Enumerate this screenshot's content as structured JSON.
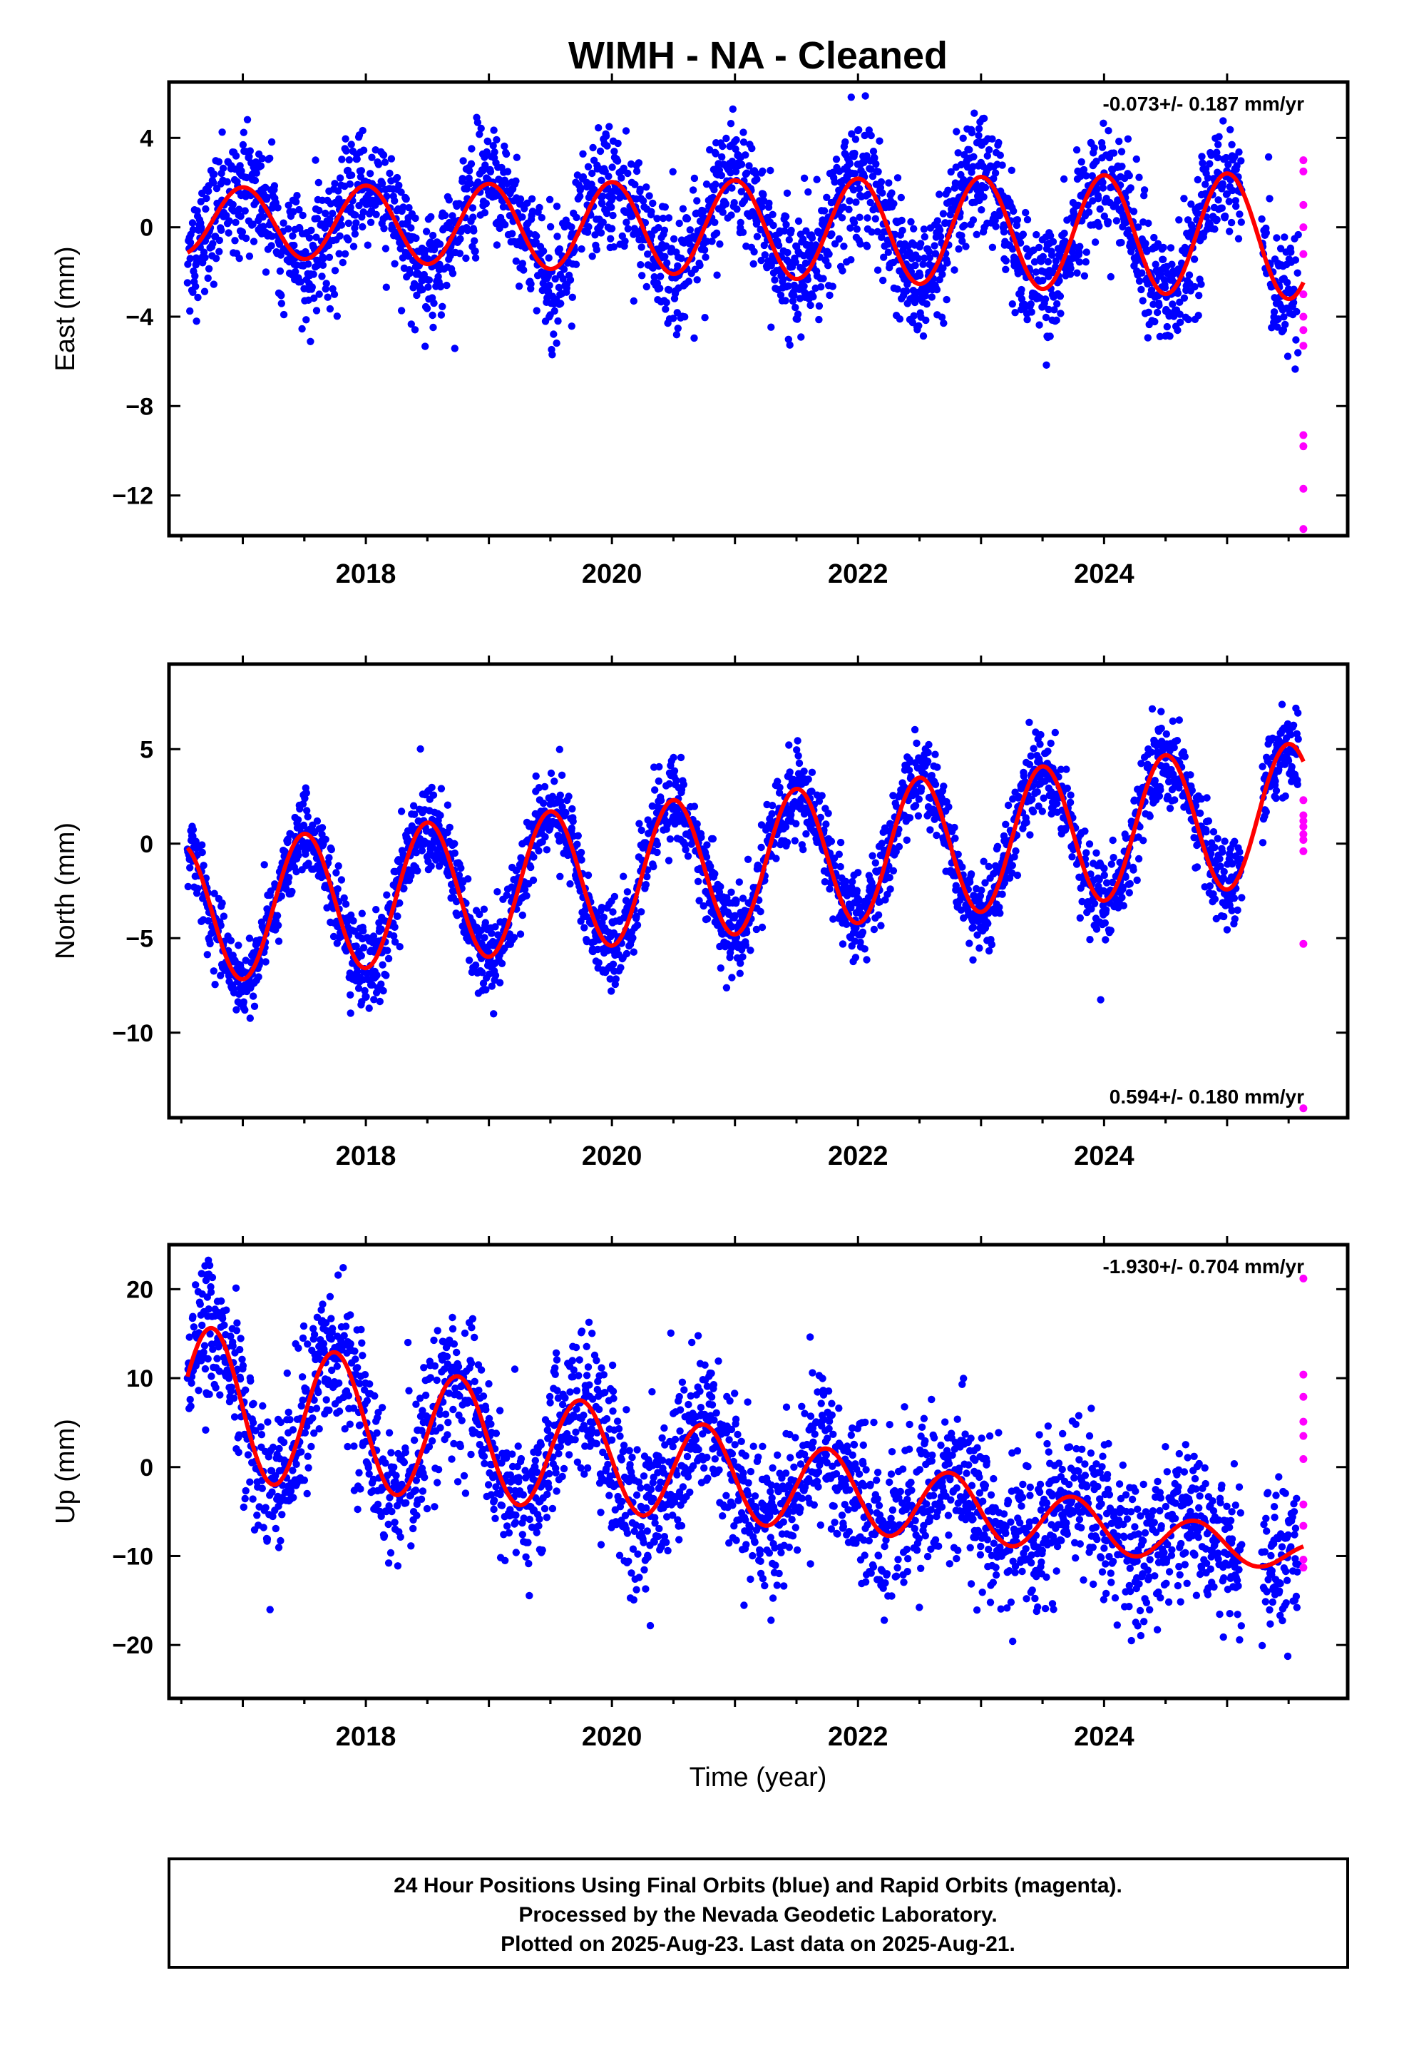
{
  "title": "WIMH  - NA - Cleaned",
  "colors": {
    "final": "#0000ff",
    "rapid": "#ff00ff",
    "model": "#ff0000",
    "axis": "#000000"
  },
  "xaxis": {
    "label": "Time (year)",
    "range": [
      2016.4,
      2025.98
    ],
    "labeled_ticks": [
      2018,
      2020,
      2022,
      2024
    ],
    "minor_ticks": [
      2017,
      2018,
      2019,
      2020,
      2021,
      2022,
      2023,
      2024,
      2025
    ]
  },
  "panels": [
    {
      "name": "east",
      "ylabel": "East (mm)",
      "rate": "-0.073+/- 0.187 mm/yr",
      "rate_pos": "top-right",
      "ylim": [
        -13.8,
        6.5
      ],
      "yticks": [
        4,
        0,
        -4,
        -8,
        -12
      ],
      "model": {
        "offset": -0.05,
        "trend": -0.073,
        "amp": 2.15,
        "amp_growth": 0.07,
        "phase_year": 0.0
      },
      "scatter": {
        "sigma": 1.3
      },
      "rapid_points": [
        3.0,
        2.5,
        1.0,
        0.0,
        -1.2,
        -3.0,
        -4.0,
        -4.6,
        -5.3,
        -9.3,
        -9.8,
        -11.7,
        -13.5
      ],
      "rapid_x": 2025.62
    },
    {
      "name": "north",
      "ylabel": "North (mm)",
      "rate": "0.594+/- 0.180 mm/yr",
      "rate_pos": "bottom-right",
      "ylim": [
        -14.5,
        9.5
      ],
      "yticks": [
        5,
        0,
        -5,
        -10
      ],
      "model": {
        "offset": -1.1,
        "trend": 0.594,
        "amp": 3.7,
        "amp_growth": 0.0,
        "phase_year": 0.5
      },
      "scatter": {
        "sigma": 1.1
      },
      "rapid_points": [
        2.3,
        1.5,
        1.2,
        0.9,
        0.5,
        0.2,
        -0.4,
        -5.3,
        -14.0
      ],
      "rapid_x": 2025.62
    },
    {
      "name": "up",
      "ylabel": "Up (mm)",
      "rate": "-1.930+/- 0.704 mm/yr",
      "rate_pos": "top-right",
      "ylim": [
        -26,
        25
      ],
      "yticks": [
        20,
        10,
        0,
        -10,
        -20
      ],
      "model": {
        "offset": -1.1,
        "trend": -1.93,
        "amp": 5.2,
        "amp_growth": -0.15,
        "phase_year": 0.75
      },
      "scatter": {
        "sigma": 4.2
      },
      "rapid_points": [
        21.2,
        10.4,
        7.9,
        5.1,
        3.5,
        0.9,
        -4.2,
        -6.6,
        -10.4,
        -11.3
      ],
      "rapid_x": 2025.62
    }
  ],
  "footer": [
    "24 Hour Positions Using Final Orbits (blue) and Rapid Orbits (magenta).",
    "Processed by the Nevada Geodetic Laboratory.",
    "Plotted on 2025-Aug-23. Last data on 2025-Aug-21."
  ],
  "chart_data": [
    {
      "type": "scatter",
      "title": "WIMH  - NA - Cleaned",
      "xlabel": "",
      "ylabel": "East (mm)",
      "xlim": [
        2016.4,
        2025.98
      ],
      "ylim": [
        -13.8,
        6.5
      ],
      "annotation": "-0.073+/- 0.187 mm/yr",
      "series": [
        {
          "name": "Final Orbits (blue)"
        },
        {
          "name": "Rapid Orbits (magenta)"
        }
      ]
    },
    {
      "type": "scatter",
      "xlabel": "",
      "ylabel": "North (mm)",
      "xlim": [
        2016.4,
        2025.98
      ],
      "ylim": [
        -14.5,
        9.5
      ],
      "annotation": "0.594+/- 0.180 mm/yr",
      "series": [
        {
          "name": "Final Orbits (blue)"
        },
        {
          "name": "Rapid Orbits (magenta)"
        }
      ]
    },
    {
      "type": "scatter",
      "xlabel": "Time (year)",
      "ylabel": "Up (mm)",
      "xlim": [
        2016.4,
        2025.98
      ],
      "ylim": [
        -26,
        25
      ],
      "annotation": "-1.930+/- 0.704 mm/yr",
      "series": [
        {
          "name": "Final Orbits (blue)"
        },
        {
          "name": "Rapid Orbits (magenta)"
        }
      ]
    }
  ]
}
